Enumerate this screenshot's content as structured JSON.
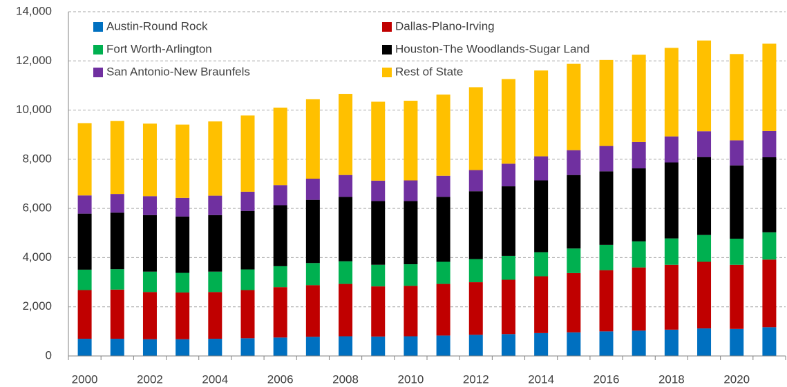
{
  "chart_data": {
    "type": "stacked_bar",
    "categories": [
      "2000",
      null,
      "2002",
      null,
      "2004",
      null,
      "2006",
      null,
      "2008",
      null,
      "2010",
      null,
      "2012",
      null,
      "2014",
      null,
      "2016",
      null,
      "2018",
      null,
      "2020",
      null
    ],
    "series": [
      {
        "name": "Austin-Round Rock",
        "color": "#0070c0",
        "values": [
          700,
          700,
          680,
          680,
          700,
          720,
          750,
          780,
          800,
          790,
          800,
          830,
          860,
          890,
          930,
          960,
          1000,
          1030,
          1070,
          1120,
          1100,
          1170
        ]
      },
      {
        "name": "Dallas-Plano-Irving",
        "color": "#c00000",
        "values": [
          1980,
          2000,
          1920,
          1900,
          1900,
          1960,
          2050,
          2100,
          2130,
          2040,
          2050,
          2100,
          2140,
          2210,
          2310,
          2410,
          2490,
          2570,
          2640,
          2710,
          2610,
          2750
        ]
      },
      {
        "name": "Fort Worth-Arlington",
        "color": "#00b050",
        "values": [
          830,
          830,
          830,
          800,
          830,
          840,
          850,
          900,
          920,
          880,
          880,
          900,
          940,
          970,
          980,
          1000,
          1030,
          1060,
          1070,
          1090,
          1060,
          1110
        ]
      },
      {
        "name": "Houston-The Woodlands-Sugar Land",
        "color": "#000000",
        "values": [
          2280,
          2300,
          2300,
          2290,
          2300,
          2380,
          2480,
          2570,
          2620,
          2590,
          2570,
          2640,
          2760,
          2830,
          2920,
          2990,
          2990,
          2970,
          3090,
          3170,
          2980,
          3050
        ]
      },
      {
        "name": "San Antonio-New Braunfels",
        "color": "#7030a0",
        "values": [
          740,
          760,
          770,
          760,
          790,
          780,
          820,
          860,
          890,
          830,
          840,
          860,
          860,
          920,
          980,
          1010,
          1030,
          1070,
          1060,
          1050,
          1020,
          1070
        ]
      },
      {
        "name": "Rest of State",
        "color": "#ffc000",
        "values": [
          2940,
          2970,
          2950,
          2980,
          3020,
          3100,
          3150,
          3230,
          3300,
          3210,
          3240,
          3300,
          3370,
          3440,
          3490,
          3510,
          3500,
          3550,
          3600,
          3690,
          3510,
          3550
        ]
      }
    ],
    "ylim": [
      0,
      14000
    ],
    "yticks": [
      0,
      {
        "value": 2000,
        "label": "2,000"
      },
      {
        "value": 4000,
        "label": "4,000"
      },
      {
        "value": 6000,
        "label": "6,000"
      },
      {
        "value": 8000,
        "label": "8,000"
      },
      {
        "value": 10000,
        "label": "10,000"
      },
      {
        "value": 12000,
        "label": "12,000"
      },
      {
        "value": 14000,
        "label": "14,000"
      }
    ],
    "grid": true
  }
}
